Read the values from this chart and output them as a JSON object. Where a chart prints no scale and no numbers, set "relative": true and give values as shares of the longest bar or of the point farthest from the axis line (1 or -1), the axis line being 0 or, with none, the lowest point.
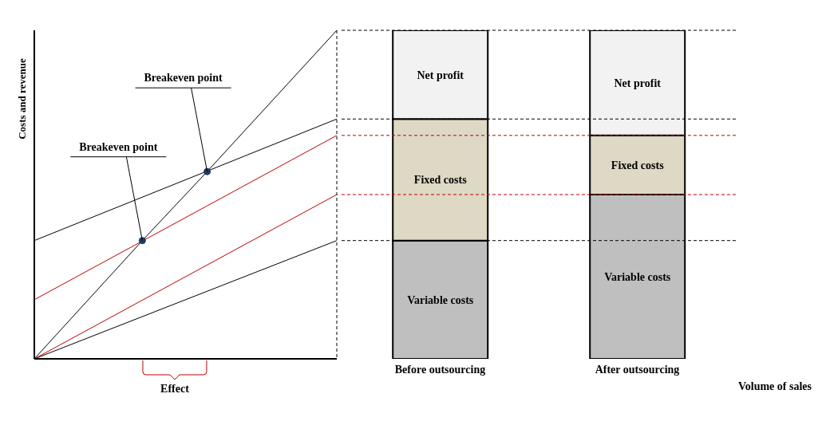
{
  "chart_data": [
    {
      "type": "line",
      "relative": true,
      "ylabel": "Costs and revenue",
      "grid": false,
      "legend": false,
      "categories": [
        null,
        null,
        null,
        null,
        null,
        null,
        null,
        null,
        null,
        null,
        null,
        null,
        null,
        null,
        null,
        null,
        null,
        null,
        null,
        null,
        null,
        null,
        null,
        null,
        null,
        null,
        null,
        null,
        null
      ],
      "series": [
        {
          "type": "line",
          "color": "#000000",
          "marker": "circle",
          "values": [
            0,
            null,
            null,
            null,
            null,
            null,
            null,
            null,
            null,
            null,
            0.36,
            null,
            null,
            null,
            null,
            null,
            0.57,
            null,
            null,
            null,
            null,
            null,
            null,
            null,
            null,
            null,
            null,
            null,
            1
          ]
        },
        {
          "type": "line",
          "color": "#000000",
          "values": [
            0.36,
            null,
            null,
            null,
            null,
            null,
            null,
            null,
            null,
            null,
            null,
            null,
            null,
            null,
            null,
            null,
            null,
            null,
            null,
            null,
            null,
            null,
            null,
            null,
            null,
            null,
            null,
            null,
            0.73
          ]
        },
        {
          "type": "line",
          "color": "#000000",
          "values": [
            0,
            null,
            null,
            null,
            null,
            null,
            null,
            null,
            null,
            null,
            null,
            null,
            null,
            null,
            null,
            null,
            null,
            null,
            null,
            null,
            null,
            null,
            null,
            null,
            null,
            null,
            null,
            null,
            0.36
          ]
        },
        {
          "type": "line",
          "color": "#c00000",
          "values": [
            0.18,
            null,
            null,
            null,
            null,
            null,
            null,
            null,
            null,
            null,
            null,
            null,
            null,
            null,
            null,
            null,
            null,
            null,
            null,
            null,
            null,
            null,
            null,
            null,
            null,
            null,
            null,
            null,
            0.68
          ]
        },
        {
          "type": "line",
          "color": "#c00000",
          "values": [
            0,
            null,
            null,
            null,
            null,
            null,
            null,
            null,
            null,
            null,
            null,
            null,
            null,
            null,
            null,
            null,
            null,
            null,
            null,
            null,
            null,
            null,
            null,
            null,
            null,
            null,
            null,
            null,
            0.5
          ]
        }
      ],
      "annotations": [
        "Breakeven point",
        "Breakeven point",
        "Effect"
      ]
    },
    {
      "type": "bar",
      "relative": true,
      "stacked": true,
      "xlabel": "Volume of sales",
      "grid": false,
      "legend": false,
      "categories": [
        "Before outsourcing",
        "After outsourcing"
      ],
      "series": [
        {
          "name": "Variable costs",
          "color": "#bfbfbf",
          "values": [
            0.36,
            0.5
          ]
        },
        {
          "name": "Fixed costs",
          "color": "#ddd9c4",
          "values": [
            0.37,
            0.18
          ]
        },
        {
          "name": "Net profit",
          "color": "#f2f2f2",
          "values": [
            0.27,
            0.32
          ]
        }
      ],
      "ref_lines": [
        {
          "axis": "y",
          "value": 1,
          "color": "#000000",
          "line_style": "dashed"
        },
        {
          "axis": "y",
          "value": 0.73,
          "color": "#000000",
          "line_style": "dashed"
        },
        {
          "axis": "y",
          "value": 0.68,
          "color": "#c00000",
          "line_style": "dashed"
        },
        {
          "axis": "y",
          "value": 0.5,
          "color": "#c00000",
          "line_style": "dashed"
        },
        {
          "axis": "y",
          "value": 0.36,
          "color": "#000000",
          "line_style": "dashed"
        }
      ]
    }
  ]
}
